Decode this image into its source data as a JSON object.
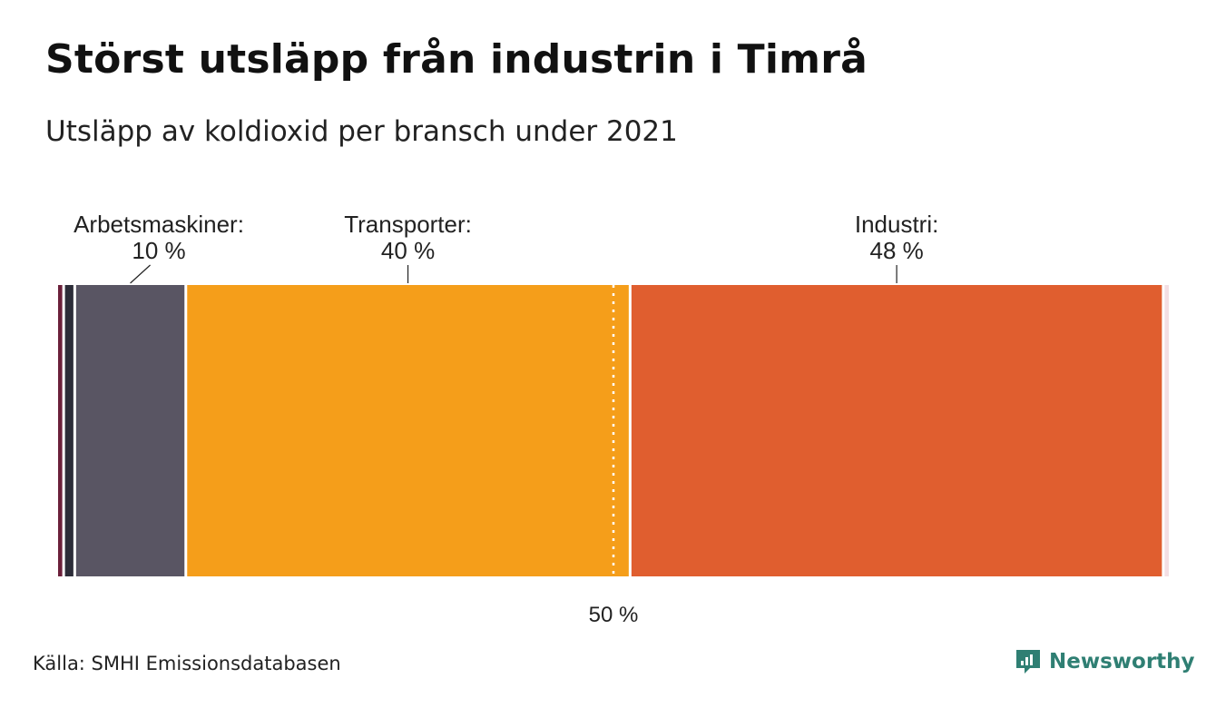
{
  "title": "Störst utsläpp från industrin i Timrå",
  "subtitle": "Utsläpp av koldioxid per bransch under 2021",
  "source": "Källa: SMHI Emissionsdatabasen",
  "brand": {
    "name": "Newsworthy",
    "color": "#2f7f73",
    "icon": "newsworthy-logo-icon"
  },
  "chart_data": {
    "type": "bar",
    "orientation": "stacked-horizontal-100-percent",
    "unit": "%",
    "xlim": [
      0,
      100
    ],
    "segments": [
      {
        "value": 0.5,
        "color": "#6b1f3a",
        "label": "",
        "value_label": ""
      },
      {
        "value": 1.0,
        "color": "#2c2c38",
        "label": "",
        "value_label": ""
      },
      {
        "value": 10,
        "color": "#595563",
        "label": "Arbetsmaskiner:",
        "value_label": "10 %"
      },
      {
        "value": 40,
        "color": "#f59e1a",
        "label": "Transporter:",
        "value_label": "40 %"
      },
      {
        "value": 48,
        "color": "#e05e2f",
        "label": "Industri:",
        "value_label": "48 %"
      },
      {
        "value": 0.5,
        "color": "#f3dfe4",
        "label": "",
        "value_label": ""
      }
    ],
    "reference_line": {
      "value": 50,
      "label": "50 %",
      "style": "dotted"
    },
    "legend": "none",
    "grid": false
  }
}
